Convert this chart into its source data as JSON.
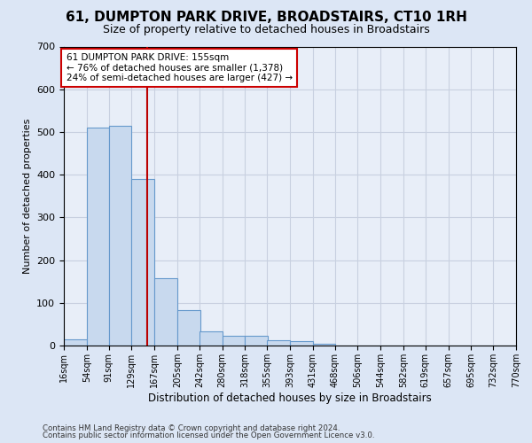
{
  "title1": "61, DUMPTON PARK DRIVE, BROADSTAIRS, CT10 1RH",
  "title2": "Size of property relative to detached houses in Broadstairs",
  "xlabel": "Distribution of detached houses by size in Broadstairs",
  "ylabel": "Number of detached properties",
  "bar_left_edges": [
    16,
    54,
    91,
    129,
    167,
    205,
    242,
    280,
    318,
    355,
    393,
    431,
    468,
    506,
    544,
    582,
    619,
    657,
    695,
    732
  ],
  "bar_heights": [
    15,
    510,
    515,
    390,
    157,
    82,
    33,
    22,
    22,
    12,
    10,
    5,
    0,
    0,
    0,
    0,
    0,
    0,
    0,
    0
  ],
  "bin_width": 38,
  "tick_labels": [
    "16sqm",
    "54sqm",
    "91sqm",
    "129sqm",
    "167sqm",
    "205sqm",
    "242sqm",
    "280sqm",
    "318sqm",
    "355sqm",
    "393sqm",
    "431sqm",
    "468sqm",
    "506sqm",
    "544sqm",
    "582sqm",
    "619sqm",
    "657sqm",
    "695sqm",
    "732sqm",
    "770sqm"
  ],
  "bar_color": "#c8d9ee",
  "bar_edge_color": "#6699cc",
  "vline_x": 155,
  "vline_color": "#bb0000",
  "ylim": [
    0,
    700
  ],
  "yticks": [
    0,
    100,
    200,
    300,
    400,
    500,
    600,
    700
  ],
  "annotation_line1": "61 DUMPTON PARK DRIVE: 155sqm",
  "annotation_line2": "← 76% of detached houses are smaller (1,378)",
  "annotation_line3": "24% of semi-detached houses are larger (427) →",
  "annotation_box_color": "#ffffff",
  "annotation_box_edge": "#cc0000",
  "footer1": "Contains HM Land Registry data © Crown copyright and database right 2024.",
  "footer2": "Contains public sector information licensed under the Open Government Licence v3.0.",
  "bg_color": "#dce6f5",
  "plot_bg_color": "#e8eef8",
  "grid_color": "#c8d0e0",
  "title1_fontsize": 11,
  "title2_fontsize": 9
}
